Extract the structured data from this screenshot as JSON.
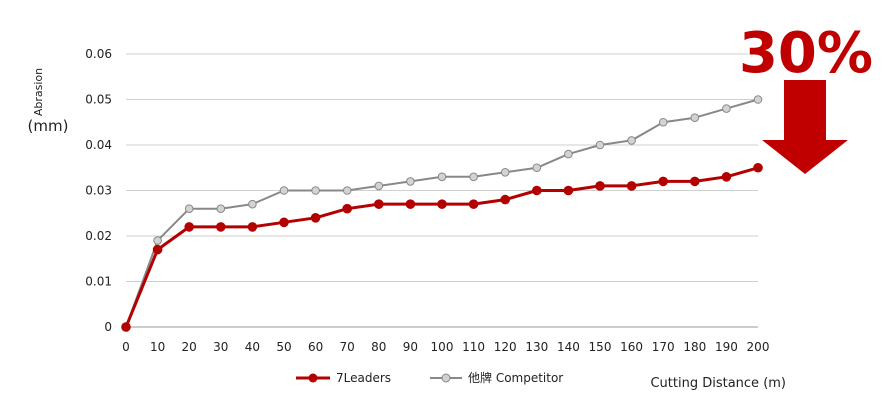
{
  "chart_data": {
    "type": "line",
    "x": [
      0,
      10,
      20,
      30,
      40,
      50,
      60,
      70,
      80,
      90,
      100,
      110,
      120,
      130,
      140,
      150,
      160,
      170,
      180,
      190,
      200
    ],
    "xlabel": "Cutting Distance (m)",
    "ylabel_line1": "Abrasion",
    "ylabel_line2": "(mm)",
    "ylim": [
      0,
      0.06
    ],
    "yticks": [
      "0.06",
      "0.05",
      "0.04",
      "0.03",
      "0.02",
      "0.01",
      "0"
    ],
    "ytick_values": [
      0.06,
      0.05,
      0.04,
      0.03,
      0.02,
      0.01,
      0
    ],
    "grid": "horizontal",
    "legend_position": "bottom",
    "series": [
      {
        "name": "7Leaders",
        "color": "#b30000",
        "values": [
          0,
          0.017,
          0.022,
          0.022,
          0.022,
          0.023,
          0.024,
          0.026,
          0.027,
          0.027,
          0.027,
          0.027,
          0.028,
          0.03,
          0.03,
          0.031,
          0.031,
          0.032,
          0.032,
          0.033,
          0.035
        ]
      },
      {
        "name": "他牌 Competitor",
        "color": "#888888",
        "values": [
          0,
          0.019,
          0.026,
          0.026,
          0.027,
          0.03,
          0.03,
          0.03,
          0.031,
          0.032,
          0.033,
          0.033,
          0.034,
          0.035,
          0.038,
          0.04,
          0.041,
          0.045,
          0.046,
          0.048,
          0.05
        ]
      }
    ],
    "annotation": {
      "text": "30%",
      "icon": "down-arrow-icon",
      "color": "#c00000"
    }
  }
}
